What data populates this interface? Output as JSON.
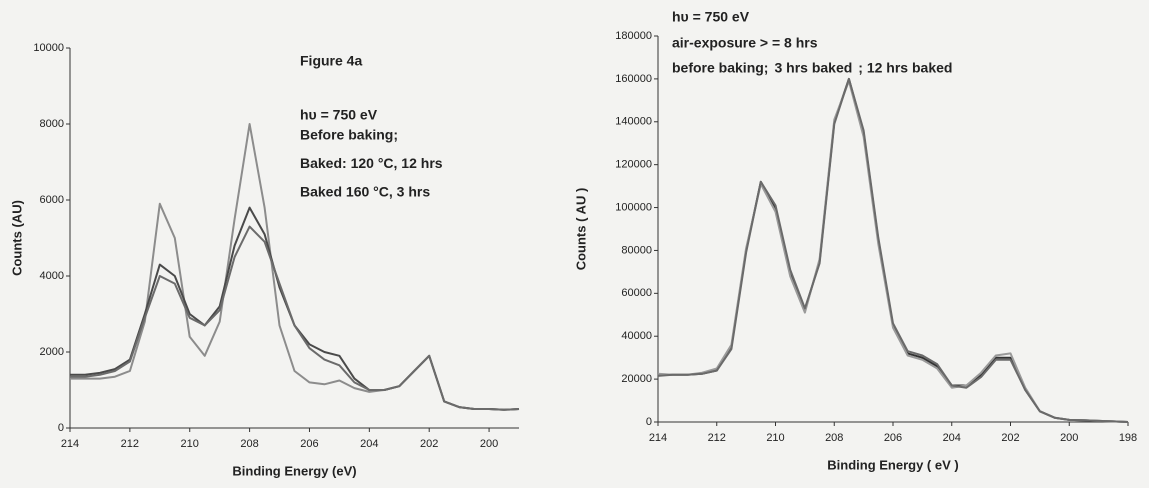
{
  "chart_data": [
    {
      "type": "line",
      "annotations": [
        "Figure 4a",
        "hυ = 750 eV"
      ],
      "x_label": "Binding Energy (eV)",
      "y_label": "Counts (AU)",
      "x": [
        214,
        213.5,
        213,
        212.5,
        212,
        211.5,
        211,
        210.5,
        210,
        209.5,
        209,
        208.5,
        208,
        207.5,
        207,
        206.5,
        206,
        205.5,
        205,
        204.5,
        204,
        203.5,
        203,
        202.5,
        202,
        201.5,
        201,
        200.5,
        200,
        199.5,
        199
      ],
      "series": [
        {
          "name": "Before baking;",
          "color": "#8c8c8c",
          "values": [
            1300,
            1300,
            1300,
            1350,
            1500,
            2800,
            5900,
            5000,
            2400,
            1900,
            2800,
            5500,
            8000,
            5800,
            2700,
            1500,
            1200,
            1150,
            1250,
            1050,
            950,
            1000,
            1100,
            1500,
            1900,
            700,
            550,
            500,
            500,
            480,
            500
          ]
        },
        {
          "name": "Baked:  120 °C, 12 hrs",
          "color": "#4a4a4a",
          "values": [
            1400,
            1400,
            1450,
            1550,
            1800,
            3000,
            4300,
            4000,
            3000,
            2700,
            3200,
            4800,
            5800,
            5100,
            3700,
            2700,
            2200,
            2000,
            1900,
            1300,
            1000,
            1000,
            1100,
            1500,
            1900,
            700,
            550,
            500,
            500,
            480,
            500
          ]
        },
        {
          "name": "Baked  160 °C, 3 hrs",
          "color": "#6b6b6b",
          "values": [
            1350,
            1350,
            1400,
            1500,
            1750,
            2900,
            4000,
            3800,
            2900,
            2700,
            3100,
            4500,
            5300,
            4900,
            3800,
            2700,
            2100,
            1800,
            1650,
            1200,
            1000,
            1000,
            1100,
            1500,
            1900,
            700,
            550,
            500,
            500,
            480,
            500
          ]
        }
      ],
      "xlim": [
        214,
        199
      ],
      "xticks": [
        214,
        212,
        210,
        208,
        206,
        204,
        202,
        200
      ],
      "ylim": [
        0,
        10000
      ],
      "yticks": [
        0,
        2000,
        4000,
        6000,
        8000,
        10000
      ],
      "legend": "upper center"
    },
    {
      "type": "line",
      "annotations": [
        "hυ = 750 eV",
        "air-exposure  > = 8 hrs"
      ],
      "x_label": "Binding Energy ( eV )",
      "y_label": "Counts ( AU )",
      "x": [
        214,
        213.5,
        213,
        212.5,
        212,
        211.5,
        211,
        210.5,
        210,
        209.5,
        209,
        208.5,
        208,
        207.5,
        207,
        206.5,
        206,
        205.5,
        205,
        204.5,
        204,
        203.5,
        203,
        202.5,
        202,
        201.5,
        201,
        200.5,
        200,
        199.5,
        199,
        198.5,
        198
      ],
      "series": [
        {
          "name": "before baking;",
          "color": "#333333",
          "values": [
            22000,
            22000,
            22000,
            22500,
            24000,
            35000,
            80000,
            112000,
            100000,
            70000,
            52000,
            75000,
            140000,
            160000,
            135000,
            85000,
            45000,
            32000,
            30000,
            26000,
            17000,
            17000,
            22000,
            30000,
            30000,
            15000,
            5000,
            2000,
            1000,
            800,
            500,
            300,
            0
          ]
        },
        {
          "name": "3 hrs baked",
          "color": "#9a9a9a",
          "values": [
            22500,
            22000,
            22000,
            23000,
            25000,
            36000,
            81000,
            111000,
            98000,
            68000,
            51000,
            76000,
            141000,
            159000,
            133000,
            83000,
            44000,
            31000,
            29000,
            25000,
            16000,
            17000,
            23000,
            31000,
            32000,
            16000,
            5000,
            2000,
            1000,
            800,
            500,
            300,
            0
          ]
        },
        {
          "name": "; 12 hrs baked",
          "color": "#6a6a6a",
          "values": [
            21500,
            22000,
            22000,
            22500,
            24000,
            34000,
            79000,
            112000,
            101000,
            71000,
            53000,
            74000,
            139000,
            160000,
            136000,
            86000,
            46000,
            33000,
            31000,
            27000,
            17000,
            16000,
            21000,
            29000,
            29000,
            15000,
            5000,
            2000,
            1000,
            800,
            500,
            300,
            0
          ]
        }
      ],
      "xlim": [
        214,
        198
      ],
      "xticks": [
        214,
        212,
        210,
        208,
        206,
        204,
        202,
        200,
        198
      ],
      "ylim": [
        0,
        180000
      ],
      "yticks": [
        0,
        20000,
        40000,
        60000,
        80000,
        100000,
        120000,
        140000,
        160000,
        180000
      ],
      "legend": "upper left"
    }
  ]
}
